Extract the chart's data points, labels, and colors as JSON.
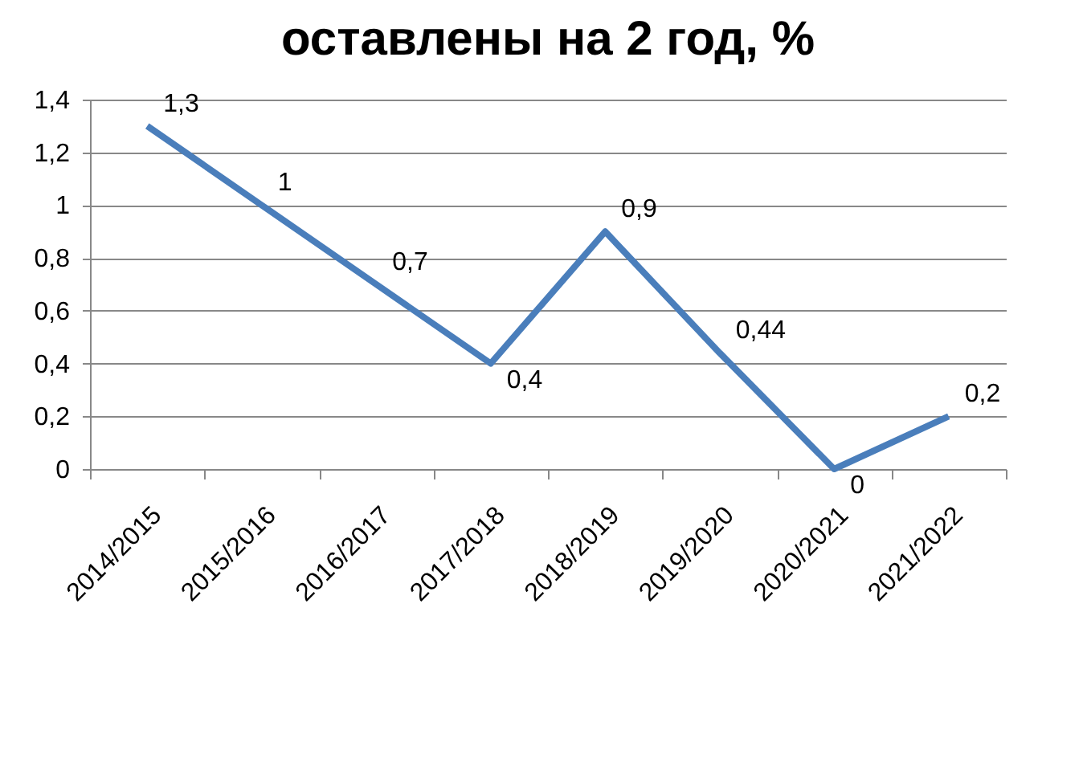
{
  "chart_data": {
    "type": "line",
    "title": "оставлены на 2 год, %",
    "categories": [
      "2014/2015",
      "2015/2016",
      "2016/2017",
      "2017/2018",
      "2018/2019",
      "2019/2020",
      "2020/2021",
      "2021/2022"
    ],
    "series": [
      {
        "color": "#4a7ebb",
        "values": [
          1.3,
          1,
          0.7,
          0.4,
          0.9,
          0.44,
          0,
          0.2
        ],
        "value_labels": [
          "1,3",
          "1",
          "0,7",
          "0,4",
          "0,9",
          "0,44",
          "0",
          "0,2"
        ]
      }
    ],
    "ylim": [
      0,
      1.4
    ],
    "yticks": [
      0,
      {
        "value": 0.2,
        "label": "0,2"
      },
      {
        "value": 0.4,
        "label": "0,4"
      },
      {
        "value": 0.6,
        "label": "0,6"
      },
      {
        "value": 0.8,
        "label": "0,8"
      },
      1,
      {
        "value": 1.2,
        "label": "1,2"
      },
      {
        "value": 1.4,
        "label": "1,4"
      }
    ],
    "grid": "y",
    "line_style": "solid"
  }
}
